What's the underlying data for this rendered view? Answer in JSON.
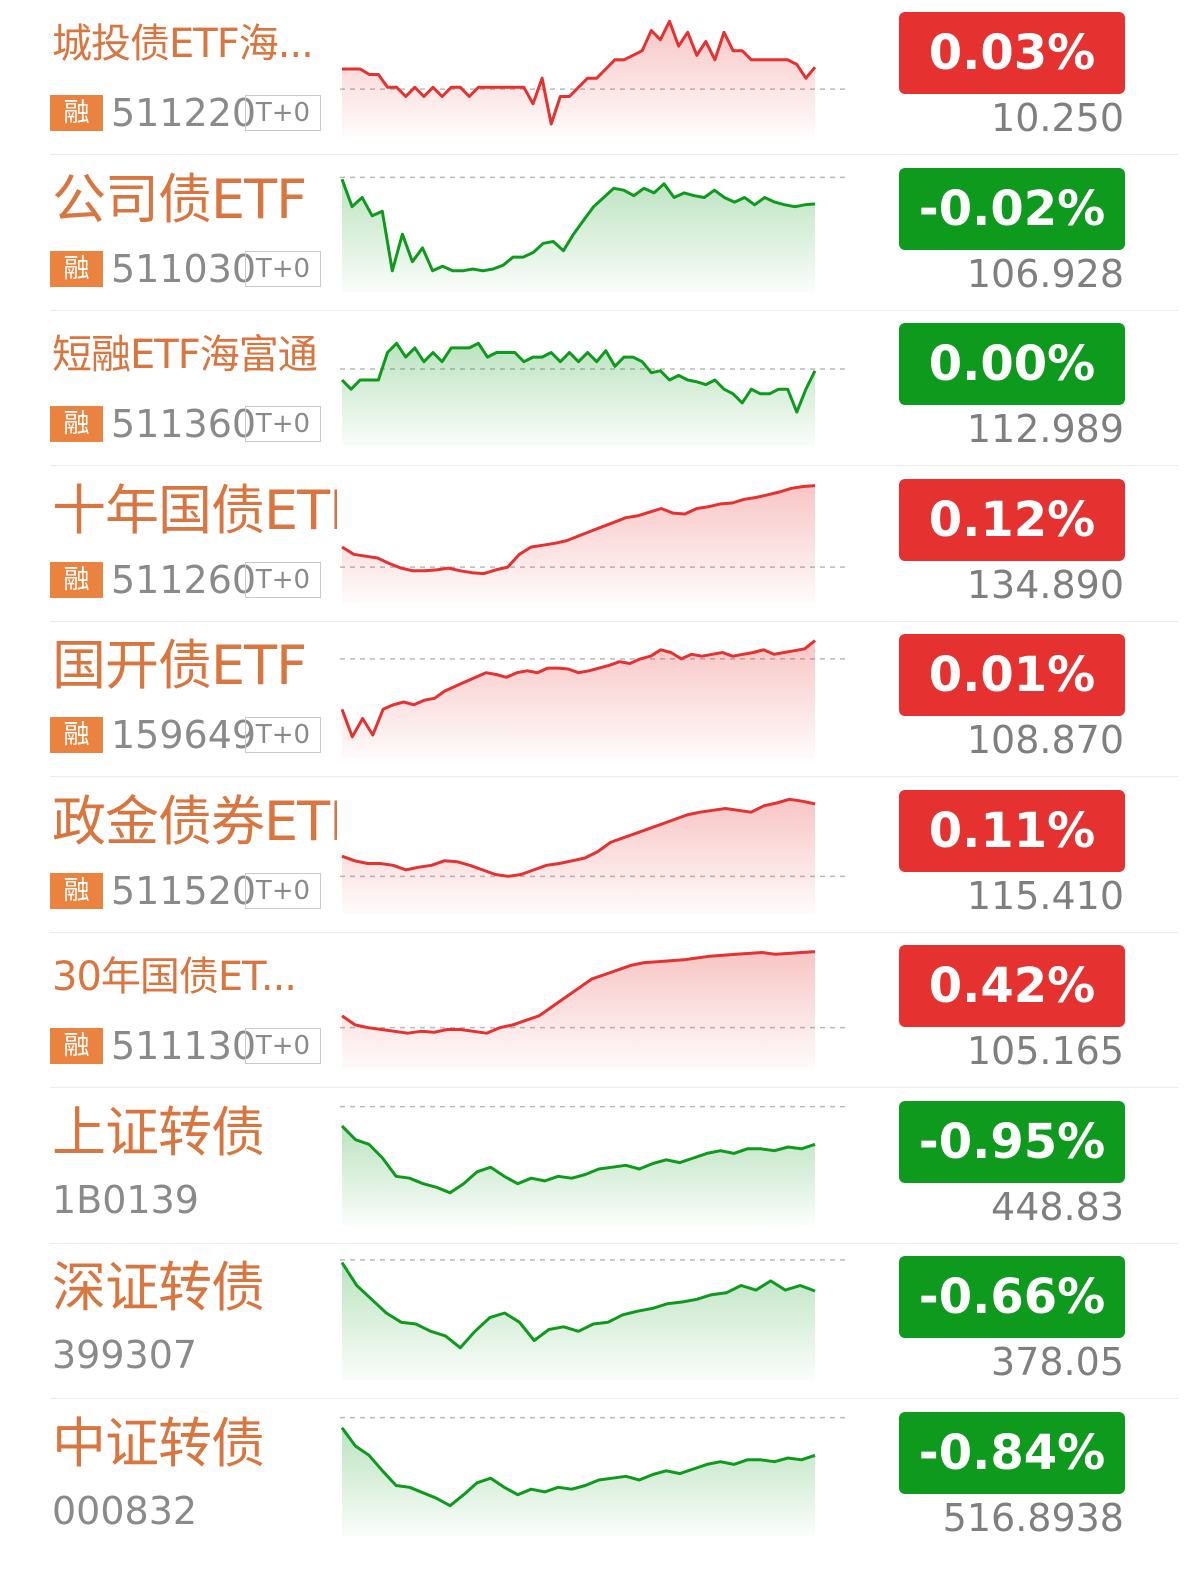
{
  "colors": {
    "up": "#e5312f",
    "down": "#0e9a1c",
    "name": "#d9753e",
    "rz_badge": "#e9833f"
  },
  "rz_label": "融",
  "t0_label": "T+0",
  "rows": [
    {
      "name": "城投债ETF海...",
      "code": "511220",
      "margin": true,
      "change": "0.03%",
      "direction": "up",
      "price": "10.250",
      "spark": [
        60,
        60,
        60,
        66,
        66,
        80,
        80,
        90,
        80,
        90,
        80,
        90,
        80,
        80,
        90,
        80,
        80,
        80,
        80,
        80,
        80,
        98,
        70,
        120,
        90,
        90,
        80,
        70,
        70,
        60,
        50,
        50,
        45,
        40,
        18,
        28,
        8,
        35,
        20,
        45,
        30,
        50,
        20,
        40,
        40,
        50,
        50,
        50,
        50,
        50,
        55,
        70,
        58
      ],
      "baseline": 82
    },
    {
      "name": "公司债ETF",
      "code": "511030",
      "margin": true,
      "change": "-0.02%",
      "direction": "down",
      "price": "106.928",
      "spark": [
        10,
        40,
        30,
        50,
        45,
        110,
        70,
        100,
        85,
        110,
        105,
        110,
        110,
        108,
        110,
        108,
        104,
        95,
        95,
        90,
        80,
        78,
        88,
        70,
        55,
        40,
        30,
        20,
        22,
        28,
        20,
        25,
        15,
        30,
        25,
        28,
        30,
        22,
        30,
        35,
        30,
        38,
        30,
        35,
        38,
        40,
        38,
        37
      ],
      "baseline": 8
    },
    {
      "name": "短融ETF海富通",
      "code": "511360",
      "margin": true,
      "change": "0.00%",
      "direction": "down",
      "price": "112.989",
      "spark": [
        60,
        70,
        60,
        60,
        60,
        30,
        20,
        35,
        25,
        40,
        30,
        40,
        25,
        25,
        25,
        20,
        35,
        30,
        30,
        30,
        40,
        35,
        35,
        30,
        40,
        30,
        40,
        30,
        40,
        28,
        45,
        35,
        35,
        40,
        52,
        50,
        60,
        55,
        60,
        62,
        65,
        60,
        70,
        75,
        85,
        70,
        75,
        75,
        70,
        70,
        95,
        70,
        50
      ],
      "baseline": 48
    },
    {
      "name": "十年国债ETF",
      "code": "511260",
      "margin": true,
      "change": "0.12%",
      "direction": "up",
      "price": "134.890",
      "spark": [
        72,
        80,
        82,
        84,
        90,
        95,
        98,
        98,
        97,
        95,
        98,
        100,
        101,
        97,
        94,
        80,
        72,
        70,
        68,
        65,
        60,
        55,
        50,
        45,
        40,
        38,
        34,
        30,
        35,
        36,
        30,
        28,
        25,
        24,
        20,
        18,
        15,
        12,
        8,
        6,
        5
      ],
      "baseline": 94
    },
    {
      "name": "国开债ETF",
      "code": "159649",
      "margin": true,
      "change": "0.01%",
      "direction": "up",
      "price": "108.870",
      "spark": [
        80,
        110,
        90,
        108,
        80,
        75,
        72,
        75,
        70,
        68,
        60,
        55,
        50,
        45,
        40,
        42,
        45,
        40,
        38,
        40,
        35,
        35,
        36,
        40,
        38,
        35,
        32,
        28,
        30,
        25,
        22,
        15,
        18,
        25,
        20,
        22,
        20,
        18,
        22,
        20,
        18,
        15,
        20,
        18,
        16,
        14,
        5
      ],
      "baseline": 25
    },
    {
      "name": "政金债券ETF",
      "code": "511520",
      "margin": true,
      "change": "0.11%",
      "direction": "up",
      "price": "115.410",
      "spark": [
        70,
        75,
        78,
        78,
        80,
        85,
        82,
        80,
        75,
        76,
        80,
        85,
        90,
        92,
        90,
        85,
        80,
        78,
        75,
        72,
        65,
        55,
        50,
        45,
        40,
        35,
        30,
        25,
        22,
        20,
        18,
        20,
        22,
        15,
        12,
        8,
        10,
        13
      ],
      "baseline": 92
    },
    {
      "name": "30年国债ET...",
      "code": "511130",
      "margin": true,
      "change": "0.42%",
      "direction": "up",
      "price": "105.165",
      "spark": [
        75,
        85,
        88,
        90,
        92,
        94,
        92,
        93,
        90,
        90,
        92,
        94,
        88,
        85,
        80,
        75,
        65,
        55,
        45,
        35,
        30,
        25,
        20,
        17,
        16,
        15,
        14,
        12,
        10,
        9,
        8,
        7,
        6,
        8,
        7,
        6,
        5
      ],
      "baseline": 88
    },
    {
      "name": "上证转债",
      "code": "1B0139",
      "margin": false,
      "change": "-0.95%",
      "direction": "down",
      "price": "448.83",
      "spark": [
        25,
        40,
        45,
        60,
        80,
        82,
        88,
        92,
        98,
        88,
        75,
        70,
        80,
        88,
        82,
        85,
        80,
        82,
        78,
        72,
        70,
        68,
        72,
        66,
        62,
        65,
        60,
        55,
        52,
        55,
        50,
        50,
        52,
        48,
        50,
        45
      ],
      "baseline": 4
    },
    {
      "name": "深证转债",
      "code": "399307",
      "margin": false,
      "change": "-0.66%",
      "direction": "down",
      "price": "378.05",
      "spark": [
        5,
        30,
        45,
        60,
        70,
        72,
        80,
        85,
        98,
        80,
        65,
        60,
        70,
        90,
        78,
        75,
        80,
        72,
        70,
        62,
        58,
        55,
        50,
        48,
        45,
        40,
        38,
        30,
        35,
        25,
        35,
        30,
        36
      ],
      "baseline": 2
    },
    {
      "name": "中证转债",
      "code": "000832",
      "margin": false,
      "change": "-0.84%",
      "direction": "down",
      "price": "516.8938",
      "spark": [
        15,
        35,
        45,
        62,
        78,
        80,
        86,
        92,
        100,
        88,
        75,
        70,
        80,
        88,
        82,
        85,
        80,
        82,
        78,
        72,
        70,
        68,
        72,
        66,
        62,
        65,
        60,
        55,
        52,
        55,
        50,
        50,
        52,
        48,
        50,
        45
      ],
      "baseline": 4
    }
  ]
}
